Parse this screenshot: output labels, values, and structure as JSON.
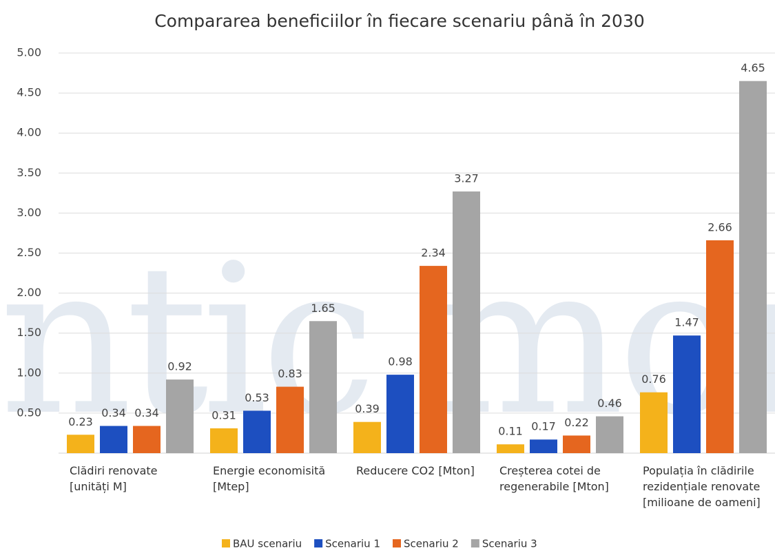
{
  "chart_data": {
    "type": "bar",
    "title": "Compararea beneficiilor în fiecare scenariu până în 2030",
    "watermark": "autentic monitor",
    "categories": [
      "Clădiri renovate [unități M]",
      "Energie economisită [Mtep]",
      "Reducere CO2 [Mton]",
      "Creșterea cotei de regenerabile [Mton]",
      "Populația în clădirile rezidențiale renovate [milioane de oameni]"
    ],
    "series": [
      {
        "name": "BAU scenariu",
        "color": "#f4b21b",
        "values": [
          0.23,
          0.31,
          0.39,
          0.11,
          0.76
        ]
      },
      {
        "name": "Scenariu 1",
        "color": "#1d4fc0",
        "values": [
          0.34,
          0.53,
          0.98,
          0.17,
          1.47
        ]
      },
      {
        "name": "Scenariu 2",
        "color": "#e5661f",
        "values": [
          0.34,
          0.83,
          2.34,
          0.22,
          2.66
        ]
      },
      {
        "name": "Scenariu 3",
        "color": "#a5a5a5",
        "values": [
          0.92,
          1.65,
          3.27,
          0.46,
          4.65
        ]
      }
    ],
    "ylim": [
      0,
      5
    ],
    "yticks": [
      {
        "value": 0.5,
        "label": "0.50"
      },
      {
        "value": 1,
        "label": "1.00"
      },
      {
        "value": 1.5,
        "label": "1.50"
      },
      {
        "value": 2,
        "label": "2.00"
      },
      {
        "value": 2.5,
        "label": "2.50"
      },
      {
        "value": 3,
        "label": "3.00"
      },
      {
        "value": 3.5,
        "label": "3.50"
      },
      {
        "value": 4,
        "label": "4.00"
      },
      {
        "value": 4.5,
        "label": "4.50"
      },
      {
        "value": 5,
        "label": "5.00"
      }
    ],
    "grid": true
  }
}
